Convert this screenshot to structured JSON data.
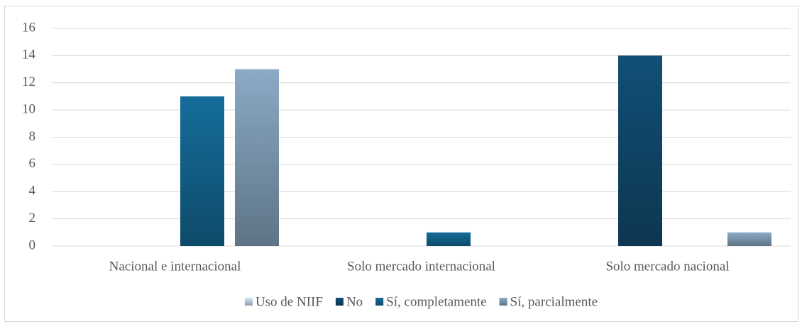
{
  "chart_data": {
    "type": "bar",
    "categories": [
      "Nacional e internacional",
      "Solo mercado internacional",
      "Solo mercado nacional"
    ],
    "series": [
      {
        "name": "Uso de NIIF",
        "color": "#a9b8c8",
        "values": [
          null,
          null,
          null
        ]
      },
      {
        "name": "No",
        "color": "#0e3f5e",
        "values": [
          null,
          null,
          14
        ]
      },
      {
        "name": "Sí, completamente",
        "color": "#11577c",
        "values": [
          11,
          1,
          null
        ]
      },
      {
        "name": "Sí, parcialmente",
        "color": "#6f889e",
        "values": [
          13,
          null,
          1
        ]
      }
    ],
    "ylim": [
      0,
      16
    ],
    "yticks": [
      0,
      2,
      4,
      6,
      8,
      10,
      12,
      14,
      16
    ],
    "grid": true,
    "legend": "bottom"
  }
}
